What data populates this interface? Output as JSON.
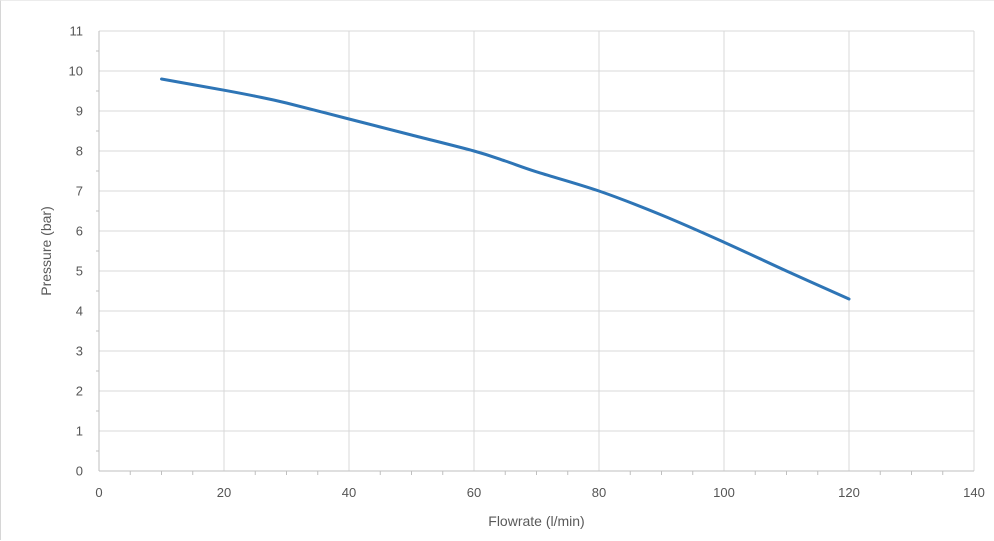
{
  "chart_data": {
    "type": "line",
    "title": "",
    "xlabel": "Flowrate (l/min)",
    "ylabel": "Pressure (bar)",
    "xlim": [
      0,
      140
    ],
    "ylim": [
      0,
      11
    ],
    "xticks": [
      0,
      20,
      40,
      60,
      80,
      100,
      120,
      140
    ],
    "yticks": [
      0,
      1,
      2,
      3,
      4,
      5,
      6,
      7,
      8,
      9,
      10,
      11
    ],
    "grid": true,
    "legend": "none",
    "series": [
      {
        "color": "#2e75b6",
        "x": [
          10,
          20,
          25,
          30,
          40,
          50,
          60,
          65,
          70,
          80,
          90,
          100,
          110,
          120
        ],
        "y": [
          9.8,
          9.52,
          9.37,
          9.2,
          8.8,
          8.4,
          8.0,
          7.75,
          7.48,
          7.0,
          6.4,
          5.72,
          5.0,
          4.3
        ]
      }
    ]
  }
}
